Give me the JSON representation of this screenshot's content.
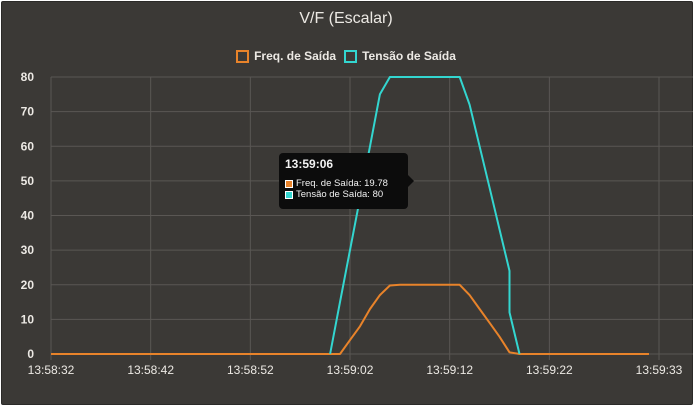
{
  "chart_data": {
    "type": "line",
    "title": "V/F (Escalar)",
    "x_tick_labels": [
      "13:58:32",
      "13:58:42",
      "13:58:52",
      "13:59:02",
      "13:59:12",
      "13:59:22",
      "13:59:33"
    ],
    "y_tick_labels": [
      "0",
      "10",
      "20",
      "30",
      "40",
      "50",
      "60",
      "70",
      "80"
    ],
    "xlim": [
      "13:58:32",
      "13:59:33"
    ],
    "ylim": [
      0,
      80
    ],
    "grid": true,
    "legend_position": "top-center",
    "series": [
      {
        "name": "Freq. de Saída",
        "color": "#e8832a",
        "points": [
          [
            "13:58:32",
            0
          ],
          [
            "13:59:00",
            0
          ],
          [
            "13:59:01",
            0
          ],
          [
            "13:59:02",
            4
          ],
          [
            "13:59:03",
            8
          ],
          [
            "13:59:04",
            13
          ],
          [
            "13:59:05",
            17
          ],
          [
            "13:59:06",
            19.78
          ],
          [
            "13:59:07",
            20
          ],
          [
            "13:59:12",
            20
          ],
          [
            "13:59:13",
            20
          ],
          [
            "13:59:14",
            17
          ],
          [
            "13:59:15",
            13
          ],
          [
            "13:59:16",
            9
          ],
          [
            "13:59:17",
            5
          ],
          [
            "13:59:18",
            0.5
          ],
          [
            "13:59:19",
            0
          ],
          [
            "13:59:32",
            0
          ]
        ]
      },
      {
        "name": "Tensão de Saída",
        "color": "#33d6d0",
        "points": [
          [
            "13:59:00",
            0
          ],
          [
            "13:59:01",
            15
          ],
          [
            "13:59:02",
            30
          ],
          [
            "13:59:03",
            45
          ],
          [
            "13:59:04",
            60
          ],
          [
            "13:59:05",
            75
          ],
          [
            "13:59:06",
            80
          ],
          [
            "13:59:13",
            80
          ],
          [
            "13:59:14",
            72
          ],
          [
            "13:59:15",
            60
          ],
          [
            "13:59:16",
            48
          ],
          [
            "13:59:17",
            36
          ],
          [
            "13:59:18",
            24
          ],
          [
            "13:59:18",
            12
          ],
          [
            "13:59:19",
            0
          ]
        ]
      }
    ]
  },
  "legend": {
    "items": [
      {
        "label": "Freq. de Saída",
        "color": "#e8832a"
      },
      {
        "label": "Tensão de Saída",
        "color": "#33d6d0"
      }
    ]
  },
  "tooltip": {
    "title": "13:59:06",
    "rows": [
      {
        "label": "Freq. de Saída: 19.78",
        "color": "#e8832a"
      },
      {
        "label": "Tensão de Saída: 80",
        "color": "#33d6d0"
      }
    ]
  }
}
